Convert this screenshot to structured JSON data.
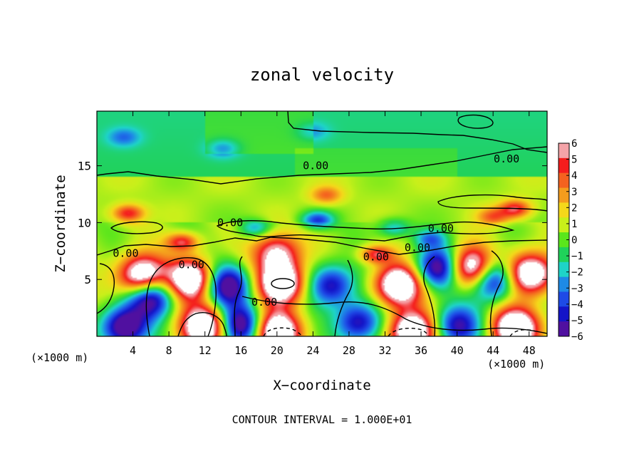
{
  "chart_data": {
    "type": "heatmap",
    "title": "zonal velocity",
    "xlabel": "X−coordinate",
    "ylabel": "Z−coordinate",
    "x_unit_left": "(×1000 m)",
    "x_unit_right": "(×1000 m)",
    "footer": "CONTOUR INTERVAL = 1.000E+01",
    "xlim": [
      0,
      50
    ],
    "ylim": [
      0,
      19.8
    ],
    "x_ticks": [
      4,
      8,
      12,
      16,
      20,
      24,
      28,
      32,
      36,
      40,
      44,
      48
    ],
    "y_ticks": [
      5,
      10,
      15
    ],
    "colorbar": {
      "levels": [
        "6",
        "5",
        "4",
        "3",
        "2",
        "1",
        "0",
        "−1",
        "−2",
        "−3",
        "−4",
        "−5",
        "−6"
      ],
      "colors": [
        "#f4a3a8",
        "#f41d1d",
        "#f4621f",
        "#f49c1d",
        "#f5d81a",
        "#c8f01a",
        "#5ae61c",
        "#20d25a",
        "#1ed4c8",
        "#1e8ae6",
        "#1e4ae6",
        "#1414c8",
        "#5010a0"
      ],
      "range": [
        -6,
        6
      ]
    },
    "contour_labels": [
      {
        "text": "0.00",
        "x": 10.5,
        "y": 6.3
      },
      {
        "text": "0.00",
        "x": 24.3,
        "y": 15.0
      },
      {
        "text": "0.00",
        "x": 38.2,
        "y": 9.5
      },
      {
        "text": "0.00",
        "x": 45.5,
        "y": 15.6
      },
      {
        "text": "0.00",
        "x": 14.8,
        "y": 10.0
      },
      {
        "text": "0.00",
        "x": 3.2,
        "y": 7.3
      },
      {
        "text": "0.00",
        "x": 31.0,
        "y": 7.0
      },
      {
        "text": "0.00",
        "x": 35.6,
        "y": 7.8
      },
      {
        "text": "0.00",
        "x": 18.6,
        "y": 3.0
      }
    ],
    "features": [
      {
        "kind": "max",
        "x": 5.0,
        "y": 5.3,
        "value": 6
      },
      {
        "kind": "max",
        "x": 10.5,
        "y": 5.0,
        "value": 6
      },
      {
        "kind": "max",
        "x": 20.5,
        "y": 4.6,
        "value": 6
      },
      {
        "kind": "max",
        "x": 33.5,
        "y": 4.5,
        "value": 6
      },
      {
        "kind": "max",
        "x": 48.0,
        "y": 5.5,
        "value": 6
      },
      {
        "kind": "max",
        "x": 41.5,
        "y": 6.0,
        "value": 6
      },
      {
        "kind": "max",
        "x": 12.0,
        "y": 0.9,
        "value": 6
      },
      {
        "kind": "max",
        "x": 20.0,
        "y": 0.4,
        "value": 6
      },
      {
        "kind": "max",
        "x": 35.0,
        "y": 0.4,
        "value": 6
      },
      {
        "kind": "max",
        "x": 46.5,
        "y": 0.7,
        "value": 6
      },
      {
        "kind": "min",
        "x": 6.0,
        "y": 3.5,
        "value": -5
      },
      {
        "kind": "min",
        "x": 14.5,
        "y": 4.5,
        "value": -5
      },
      {
        "kind": "min",
        "x": 26.0,
        "y": 4.5,
        "value": -4
      },
      {
        "kind": "min",
        "x": 38.0,
        "y": 6.0,
        "value": -5
      },
      {
        "kind": "min",
        "x": 44.0,
        "y": 5.0,
        "value": -5
      },
      {
        "kind": "min",
        "x": 3.0,
        "y": 0.8,
        "value": -5
      },
      {
        "kind": "min",
        "x": 16.0,
        "y": 1.0,
        "value": -5
      },
      {
        "kind": "min",
        "x": 29.0,
        "y": 1.2,
        "value": -4
      },
      {
        "kind": "min",
        "x": 40.0,
        "y": 0.9,
        "value": -4
      },
      {
        "kind": "min",
        "x": 17.5,
        "y": 9.5,
        "value": -2
      },
      {
        "kind": "min",
        "x": 24.5,
        "y": 10.2,
        "value": -3
      },
      {
        "kind": "min",
        "x": 33.0,
        "y": 9.5,
        "value": -2
      },
      {
        "kind": "min",
        "x": 37.0,
        "y": 8.6,
        "value": -2
      },
      {
        "kind": "max",
        "x": 3.5,
        "y": 10.8,
        "value": 3
      },
      {
        "kind": "max",
        "x": 9.5,
        "y": 8.3,
        "value": 3
      },
      {
        "kind": "max",
        "x": 20.0,
        "y": 7.3,
        "value": 4
      },
      {
        "kind": "max",
        "x": 25.5,
        "y": 12.4,
        "value": 2
      },
      {
        "kind": "max",
        "x": 31.0,
        "y": 7.2,
        "value": 3
      },
      {
        "kind": "max",
        "x": 44.0,
        "y": 10.5,
        "value": 2
      },
      {
        "kind": "max",
        "x": 46.5,
        "y": 11.2,
        "value": 3
      },
      {
        "kind": "min",
        "x": 14.0,
        "y": 16.5,
        "value": -1.5
      },
      {
        "kind": "min",
        "x": 3.0,
        "y": 17.5,
        "value": -1.5
      },
      {
        "kind": "min",
        "x": 24.0,
        "y": 18.0,
        "value": -1
      }
    ]
  }
}
